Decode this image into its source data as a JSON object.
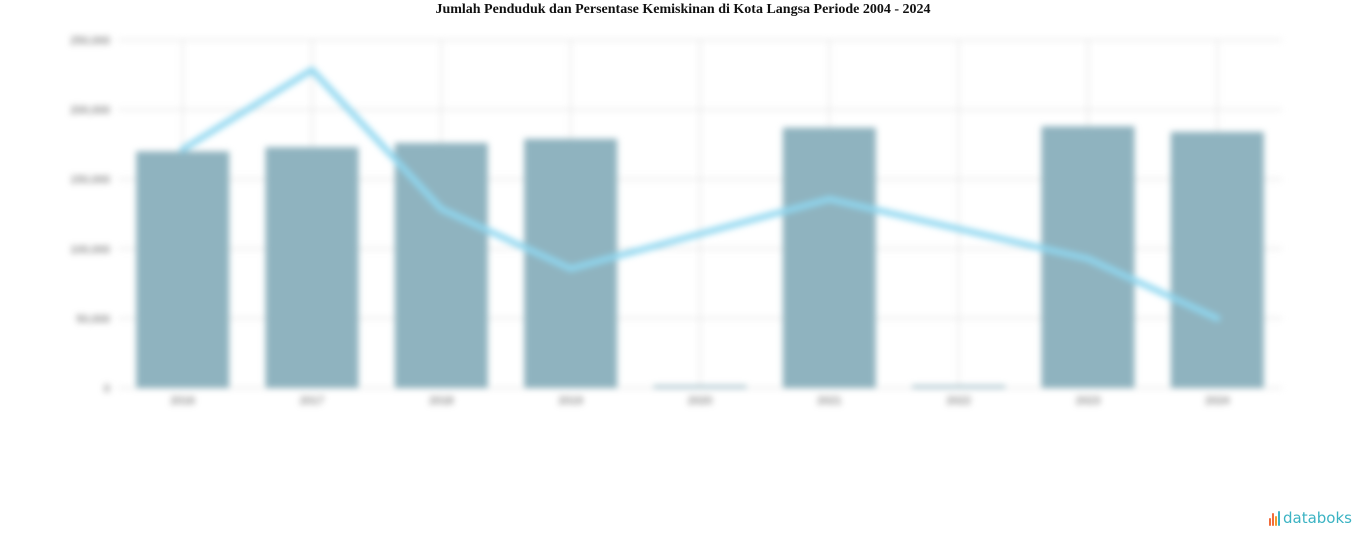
{
  "chart_data": {
    "type": "bar",
    "title": "Jumlah Penduduk dan Persentase Kemiskinan di Kota Langsa Periode 2004 - 2024",
    "categories": [
      "2016",
      "2017",
      "2018",
      "2019",
      "2020",
      "2021",
      "2022",
      "2023",
      "2024"
    ],
    "series": [
      {
        "kind": "bar",
        "axis": "left",
        "values": [
          170000,
          173000,
          176000,
          179000,
          0,
          187000,
          0,
          188000,
          184000
        ]
      },
      {
        "kind": "line",
        "axis": "right",
        "values": [
          11.08,
          11.24,
          10.96,
          10.84,
          null,
          10.98,
          null,
          10.86,
          10.74
        ]
      }
    ],
    "ylim": [
      0,
      250000
    ],
    "yticks": [
      0,
      50000,
      100000,
      150000,
      200000,
      250000
    ],
    "ytick_labels": [
      "0",
      "50,000",
      "100,000",
      "150,000",
      "200,000",
      "250,000"
    ],
    "y2lim": [
      10.6,
      11.3
    ],
    "y2ticks": [
      10.6,
      10.7,
      10.8,
      10.9,
      11.0,
      11.1,
      11.2,
      11.3
    ],
    "y2tick_labels": [
      "",
      "",
      "",
      "",
      "",
      "",
      "",
      ""
    ],
    "ylabel": "",
    "y2label": "",
    "grid": true,
    "colors": {
      "bar": "#8fb3bf",
      "line": "#8fd7f0",
      "grid": "#e3e3e3"
    }
  },
  "brand": {
    "name": "databoks",
    "color": "#3bb3c3"
  }
}
